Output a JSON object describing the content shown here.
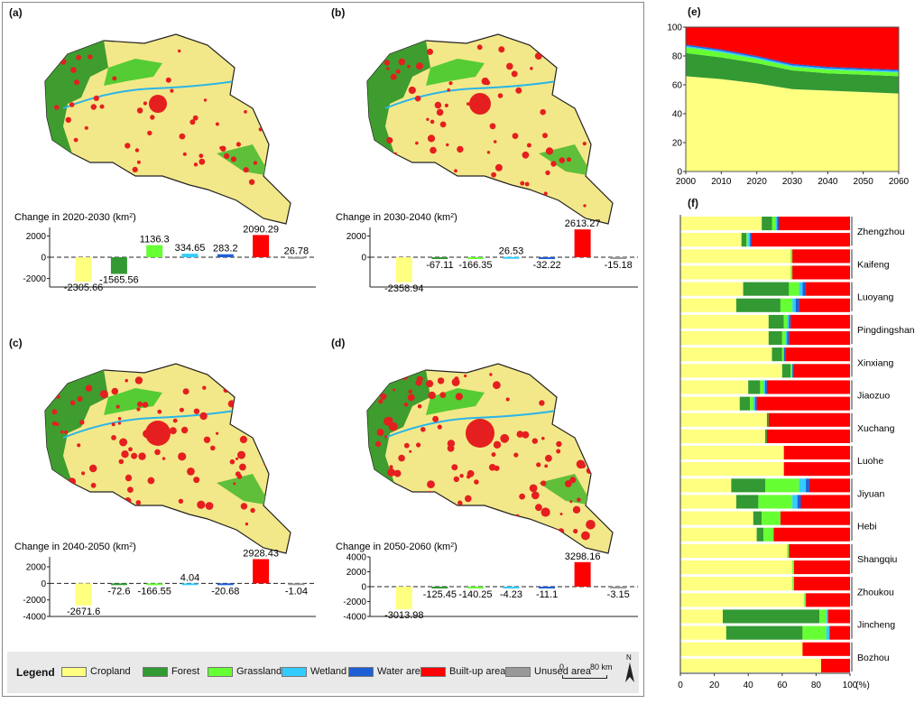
{
  "panels": [
    {
      "label": "(a)",
      "caption": "Change in 2020-2030 (km",
      "sup": "2",
      "cap_end": ")"
    },
    {
      "label": "(b)",
      "caption": "Change in 2030-2040 (km",
      "sup": "2",
      "cap_end": ")"
    },
    {
      "label": "(c)",
      "caption": "Change in 2040-2050 (km",
      "sup": "2",
      "cap_end": ")"
    },
    {
      "label": "(d)",
      "caption": "Change in 2050-2060 (km",
      "sup": "2",
      "cap_end": ")"
    }
  ],
  "panel_e_label": "(e)",
  "panel_f_label": "(f)",
  "legend": {
    "title": "Legend",
    "items": [
      {
        "label": "Cropland",
        "color": "#ffff80"
      },
      {
        "label": "Forest",
        "color": "#339933"
      },
      {
        "label": "Grassland",
        "color": "#66ff33"
      },
      {
        "label": "Wetland",
        "color": "#33ccff"
      },
      {
        "label": "Water area",
        "color": "#1f5fd6"
      },
      {
        "label": "Built-up area",
        "color": "#ff0000"
      },
      {
        "label": "Unused area",
        "color": "#999999"
      }
    ],
    "scale_zero": "0",
    "scale_end": "80 km",
    "north": "N"
  },
  "chart_data": [
    {
      "type": "bar",
      "id": "a",
      "categories": [
        "Cropland",
        "Forest",
        "Grassland",
        "Wetland",
        "Water area",
        "Built-up area",
        "Unused area"
      ],
      "values": [
        -2305.66,
        -1565.56,
        1136.3,
        334.65,
        283.2,
        2090.29,
        26.78
      ],
      "value_labels": [
        "-2305.66",
        "-1565.56",
        "1136.3",
        "334.65",
        "283.2",
        "2090.29",
        "26.78"
      ],
      "yticks": [
        "2000",
        "0",
        "-2000"
      ],
      "ylim": [
        -2800,
        2800
      ]
    },
    {
      "type": "bar",
      "id": "b",
      "categories": [
        "Cropland",
        "Forest",
        "Grassland",
        "Wetland",
        "Water area",
        "Built-up area",
        "Unused area"
      ],
      "values": [
        -2358.94,
        -67.11,
        -166.35,
        26.53,
        -32.22,
        2613.27,
        -15.18
      ],
      "value_labels": [
        "-2358.94",
        "-67.11",
        "-166.35",
        "26.53",
        "-32.22",
        "2613.27",
        "-15.18"
      ],
      "yticks": [
        "2000",
        "0"
      ],
      "ylim": [
        -2800,
        2800
      ]
    },
    {
      "type": "bar",
      "id": "c",
      "categories": [
        "Cropland",
        "Forest",
        "Grassland",
        "Wetland",
        "Water area",
        "Built-up area",
        "Unused area"
      ],
      "values": [
        -2671.6,
        -72.6,
        -166.55,
        4.04,
        -20.68,
        2928.43,
        -1.04
      ],
      "value_labels": [
        "-2671.6",
        "-72.6",
        "-166.55",
        "4.04",
        "-20.68",
        "2928.43",
        "-1.04"
      ],
      "yticks": [
        "2000",
        "0",
        "-2000",
        "-4000"
      ],
      "ylim": [
        -4000,
        3200
      ]
    },
    {
      "type": "bar",
      "id": "d",
      "categories": [
        "Cropland",
        "Forest",
        "Grassland",
        "Wetland",
        "Water area",
        "Built-up area",
        "Unused area"
      ],
      "values": [
        -3013.98,
        -125.45,
        -140.25,
        -4.23,
        -11.1,
        3298.16,
        -3.15
      ],
      "value_labels": [
        "-3013.98",
        "-125.45",
        "-140.25",
        "-4.23",
        "-11.1",
        "3298.16",
        "-3.15"
      ],
      "yticks": [
        "4000",
        "2000",
        "0",
        "-2000",
        "-4000"
      ],
      "ylim": [
        -4000,
        4000
      ]
    },
    {
      "type": "area",
      "id": "e",
      "x": [
        2000,
        2010,
        2020,
        2030,
        2040,
        2050,
        2060
      ],
      "xticks": [
        "2000",
        "2010",
        "2020",
        "2030",
        "2040",
        "2050",
        "2060"
      ],
      "yticks": [
        "0",
        "20",
        "40",
        "60",
        "80",
        "100"
      ],
      "ylim": [
        0,
        100
      ],
      "series": [
        {
          "name": "Cropland",
          "values": [
            66,
            64,
            61,
            57,
            56,
            55,
            54
          ]
        },
        {
          "name": "Forest",
          "values": [
            16,
            15,
            14,
            13,
            12,
            12,
            12
          ]
        },
        {
          "name": "Grassland",
          "values": [
            4,
            3.5,
            3,
            2.5,
            2.5,
            2.5,
            2.5
          ]
        },
        {
          "name": "Wetland",
          "values": [
            1,
            1,
            1,
            1,
            1,
            1,
            1
          ]
        },
        {
          "name": "Water area",
          "values": [
            1,
            1,
            1,
            1,
            1,
            1,
            1
          ]
        },
        {
          "name": "Built-up area",
          "values": [
            12,
            15.5,
            20,
            25.5,
            27.5,
            28.5,
            29.5
          ]
        }
      ]
    },
    {
      "type": "bar",
      "id": "f",
      "orientation": "horizontal",
      "stacked": true,
      "xticks": [
        "0",
        "20",
        "40",
        "60",
        "80",
        "100"
      ],
      "xlabel": "(%)",
      "categories": [
        "Zhengzhou",
        "Kaifeng",
        "Luoyang",
        "Pingdingshan",
        "Xinxiang",
        "Jiaozuo",
        "Xuchang",
        "Luohe",
        "Jiyuan",
        "Hebi",
        "Shangqiu",
        "Zhoukou",
        "Jincheng",
        "Bozhou"
      ],
      "rows_2020": [
        [
          48,
          6,
          2,
          1,
          1,
          42
        ],
        [
          65,
          0,
          1,
          0,
          0,
          34
        ],
        [
          37,
          27,
          6,
          2,
          2,
          26
        ],
        [
          52,
          9,
          2,
          1,
          1,
          35
        ],
        [
          54,
          6,
          1,
          0,
          1,
          38
        ],
        [
          40,
          7,
          2,
          1,
          1,
          49
        ],
        [
          51,
          1,
          0,
          0,
          0,
          48
        ],
        [
          61,
          0,
          0,
          0,
          0,
          39
        ],
        [
          30,
          20,
          20,
          4,
          2,
          24
        ],
        [
          43,
          5,
          11,
          0,
          0,
          41
        ],
        [
          63,
          0,
          1,
          0,
          0,
          36
        ],
        [
          66,
          0,
          1,
          0,
          0,
          33
        ],
        [
          25,
          57,
          4,
          1,
          0,
          13
        ],
        [
          72,
          0,
          0,
          0,
          0,
          28
        ]
      ],
      "rows_2060": [
        [
          36,
          3,
          1,
          1,
          1,
          58
        ],
        [
          65,
          0,
          1,
          0,
          0,
          34
        ],
        [
          33,
          26,
          7,
          2,
          2,
          30
        ],
        [
          52,
          8,
          2,
          1,
          1,
          36
        ],
        [
          60,
          5,
          1,
          0,
          1,
          33
        ],
        [
          35,
          6,
          2,
          1,
          1,
          55
        ],
        [
          50,
          1,
          0,
          0,
          0,
          49
        ],
        [
          61,
          0,
          0,
          0,
          0,
          39
        ],
        [
          33,
          13,
          20,
          3,
          2,
          29
        ],
        [
          45,
          4,
          6,
          0,
          0,
          45
        ],
        [
          66,
          0,
          1,
          0,
          0,
          33
        ],
        [
          73,
          0,
          1,
          0,
          0,
          26
        ],
        [
          27,
          45,
          14,
          2,
          0,
          12
        ],
        [
          83,
          0,
          0,
          0,
          0,
          17
        ]
      ]
    }
  ]
}
